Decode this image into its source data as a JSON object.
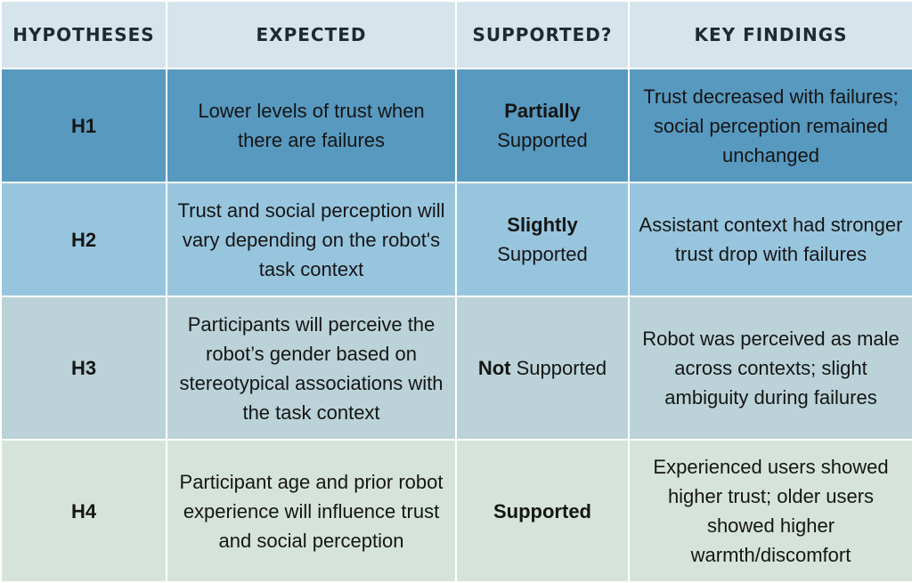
{
  "headers": [
    "HYPOTHESES",
    "EXPECTED",
    "SUPPORTED?",
    "KEY FINDINGS"
  ],
  "rows": [
    {
      "id": "H1",
      "expected": "Lower levels of trust when there are failures",
      "support_bold": "Partially",
      "support_rest": "Supported",
      "findings": "Trust decreased with failures; social perception remained unchanged"
    },
    {
      "id": "H2",
      "expected": "Trust and social perception will vary depending on the robot's task context",
      "support_bold": "Slightly",
      "support_rest": "Supported",
      "findings": "Assistant context had stronger trust drop with failures"
    },
    {
      "id": "H3",
      "expected": "Participants will perceive the robot’s gender based on stereotypical associations with the task context",
      "support_bold": "Not",
      "support_rest": "Supported",
      "findings": "Robot was perceived as male across contexts; slight ambiguity during failures"
    },
    {
      "id": "H4",
      "expected": "Participant age and prior robot experience will influence trust and social perception",
      "support_bold": "Supported",
      "findings": "Experienced users showed higher trust; older users showed higher warmth/discomfort"
    }
  ],
  "colors": {
    "header_bg": "#d6e4ec",
    "row_h1_bg": "#5899c0",
    "row_h2_bg": "#98c5de",
    "row_h3_bg": "#bbd3d8",
    "row_h4_bg": "#d6e3da",
    "text": "#151515"
  }
}
